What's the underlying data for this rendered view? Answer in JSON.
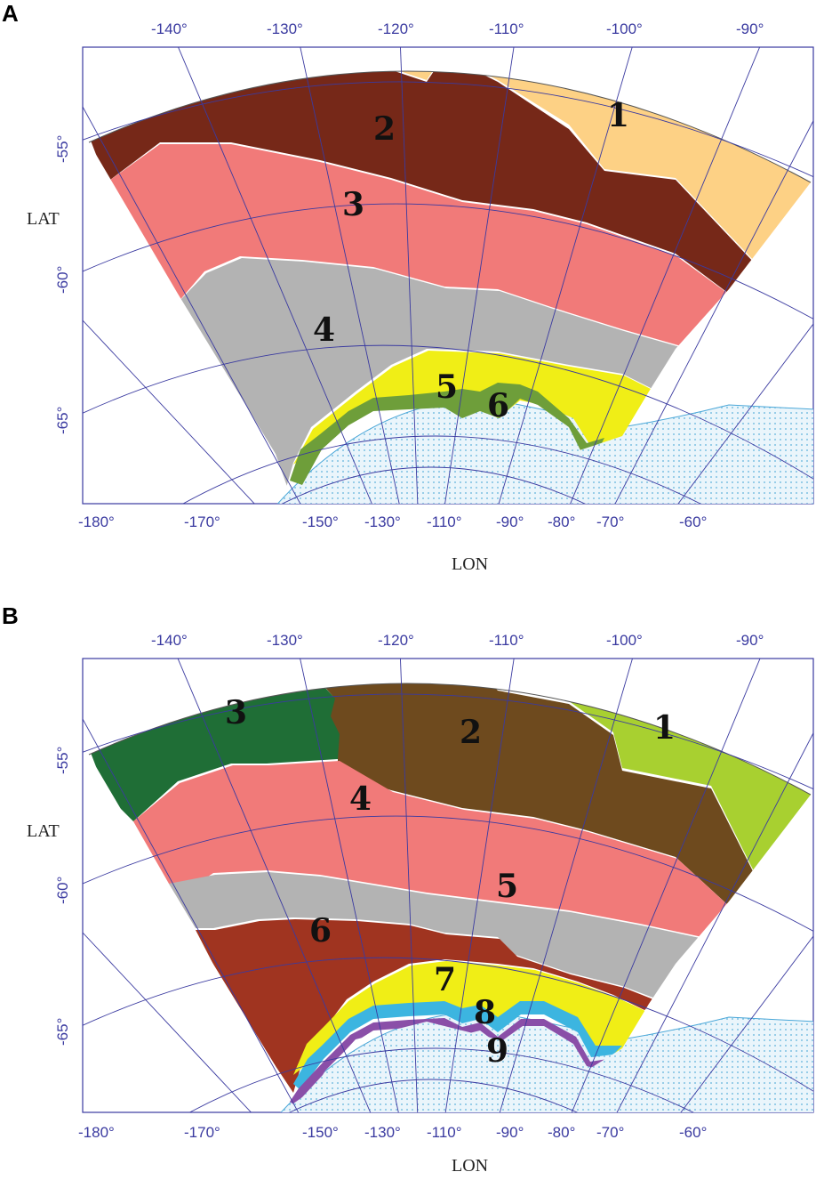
{
  "panels": [
    {
      "label": "A",
      "top_lon": [
        "-140°",
        "-130°",
        "-120°",
        "-110°",
        "-100°",
        "-90°"
      ],
      "bottom_lon": [
        "-180°",
        "-170°",
        "-150°",
        "-130°",
        "-110°",
        "-90°",
        "-80°",
        "-70°",
        "-60°"
      ],
      "lat": [
        "-55°",
        "-60°",
        "-65°"
      ],
      "xlabel": "LON",
      "ylabel": "LAT",
      "zones": [
        {
          "label": "1",
          "color": "#fdd185"
        },
        {
          "label": "2",
          "color": "#762818"
        },
        {
          "label": "3",
          "color": "#f17a79"
        },
        {
          "label": "4",
          "color": "#b3b3b3"
        },
        {
          "label": "5",
          "color": "#f0ee16"
        },
        {
          "label": "6",
          "color": "#6e9e3a"
        }
      ]
    },
    {
      "label": "B",
      "top_lon": [
        "-140°",
        "-130°",
        "-120°",
        "-110°",
        "-100°",
        "-90°"
      ],
      "bottom_lon": [
        "-180°",
        "-170°",
        "-150°",
        "-130°",
        "-110°",
        "-90°",
        "-80°",
        "-70°",
        "-60°"
      ],
      "lat": [
        "-55°",
        "-60°",
        "-65°"
      ],
      "xlabel": "LON",
      "ylabel": "LAT",
      "zones": [
        {
          "label": "1",
          "color": "#a8d030"
        },
        {
          "label": "2",
          "color": "#6e4a1e"
        },
        {
          "label": "3",
          "color": "#1f6e36"
        },
        {
          "label": "4",
          "color": "#f17a79"
        },
        {
          "label": "5",
          "color": "#b3b3b3"
        },
        {
          "label": "6",
          "color": "#a03420"
        },
        {
          "label": "7",
          "color": "#f0ee16"
        },
        {
          "label": "8",
          "color": "#3cb5e0"
        },
        {
          "label": "9",
          "color": "#8a4fa8"
        }
      ]
    }
  ],
  "land_color": "#cfe8f4",
  "grid_color": "#3a3aa0"
}
